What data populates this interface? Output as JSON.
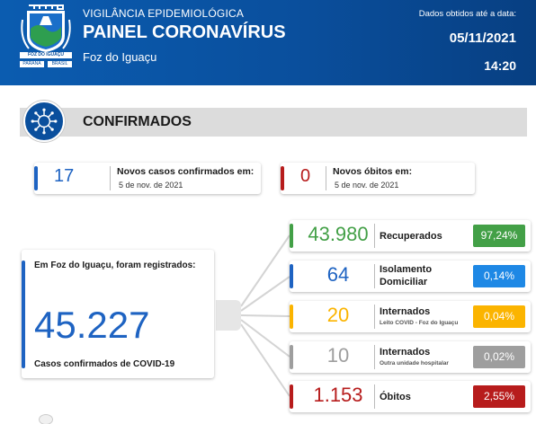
{
  "header": {
    "subtitle": "VIGILÂNCIA EPIDEMIOLÓGICA",
    "title": "PAINEL CORONAVÍRUS",
    "city": "Foz do Iguaçu",
    "data_label": "Dados obtidos até a data:",
    "date": "05/11/2021",
    "time": "14:20",
    "crest": {
      "name": "FOZ DO IGUAÇU",
      "left": "PARANÁ",
      "right": "BRASIL"
    }
  },
  "section": {
    "title": "CONFIRMADOS",
    "icon": "virus-icon"
  },
  "new_cases": {
    "value": "17",
    "label": "Novos casos confirmados em:",
    "date": "5 de nov. de 2021",
    "color": "#1e63c2"
  },
  "new_deaths": {
    "value": "0",
    "label": "Novos óbitos em:",
    "date": "5 de nov. de 2021",
    "color": "#b71c1c"
  },
  "total": {
    "label": "Em Foz do Iguaçu, foram registrados:",
    "value": "45.227",
    "caption": "Casos confirmados de COVID-19",
    "color": "#1e63c2"
  },
  "stats": [
    {
      "value": "43.980",
      "label": "Recuperados",
      "label2": "",
      "detail": "",
      "percent": "97,24%",
      "color": "#43a047"
    },
    {
      "value": "64",
      "label": "Isolamento",
      "label2": "Domiciliar",
      "detail": "",
      "percent": "0,14%",
      "color": "#1e88e5"
    },
    {
      "value": "20",
      "label": "Internados",
      "label2": "",
      "detail": "Leito COVID - Foz do Iguaçu",
      "percent": "0,04%",
      "color": "#fbb400"
    },
    {
      "value": "10",
      "label": "Internados",
      "label2": "",
      "detail": "Outra unidade hospitalar",
      "percent": "0,02%",
      "color": "#9e9e9e"
    },
    {
      "value": "1.153",
      "label": "Óbitos",
      "label2": "",
      "detail": "",
      "percent": "2,55%",
      "color": "#b71c1c"
    }
  ]
}
